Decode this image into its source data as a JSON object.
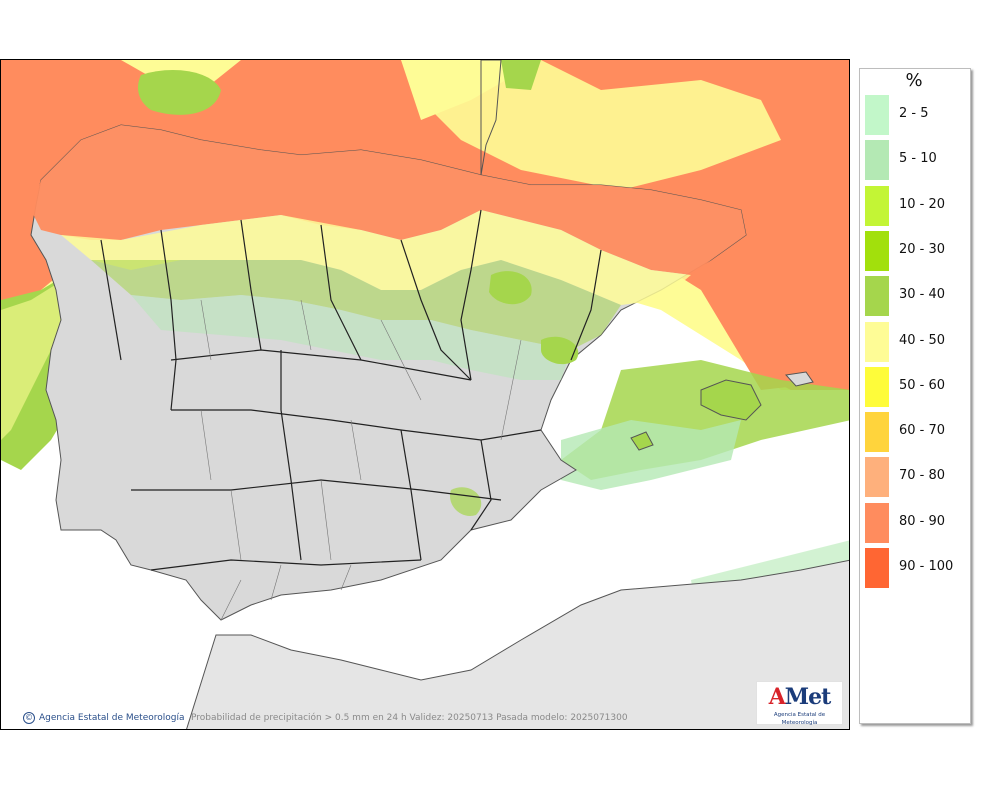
{
  "map": {
    "credit": "Agencia Estatal de Meteorología",
    "product_caption": "Probabilidad de precipitación > 0.5 mm en 24 h Validez: 20250713 Pasada modelo: 2025071300",
    "logo_word": "Met",
    "logo_letter": "A",
    "logo_subtitle": "Agencia Estatal de Meteorología",
    "land_color": "#d9d9d9",
    "sea_color": "#ffffff",
    "border_color": "#333333"
  },
  "legend": {
    "unit": "%",
    "items": [
      {
        "label": "2 - 5",
        "color": "#c2f7c9"
      },
      {
        "label": "5 - 10",
        "color": "#b4e9b4"
      },
      {
        "label": "10 - 20",
        "color": "#c3f535"
      },
      {
        "label": "20 - 30",
        "color": "#a2e00c"
      },
      {
        "label": "30 - 40",
        "color": "#a5d64c"
      },
      {
        "label": "40 - 50",
        "color": "#fefc96"
      },
      {
        "label": "50 - 60",
        "color": "#fefc3a"
      },
      {
        "label": "60 - 70",
        "color": "#ffd43c"
      },
      {
        "label": "70 - 80",
        "color": "#feb07c"
      },
      {
        "label": "80 - 90",
        "color": "#ff8c5e"
      },
      {
        "label": "90 - 100",
        "color": "#ff6633"
      }
    ]
  }
}
